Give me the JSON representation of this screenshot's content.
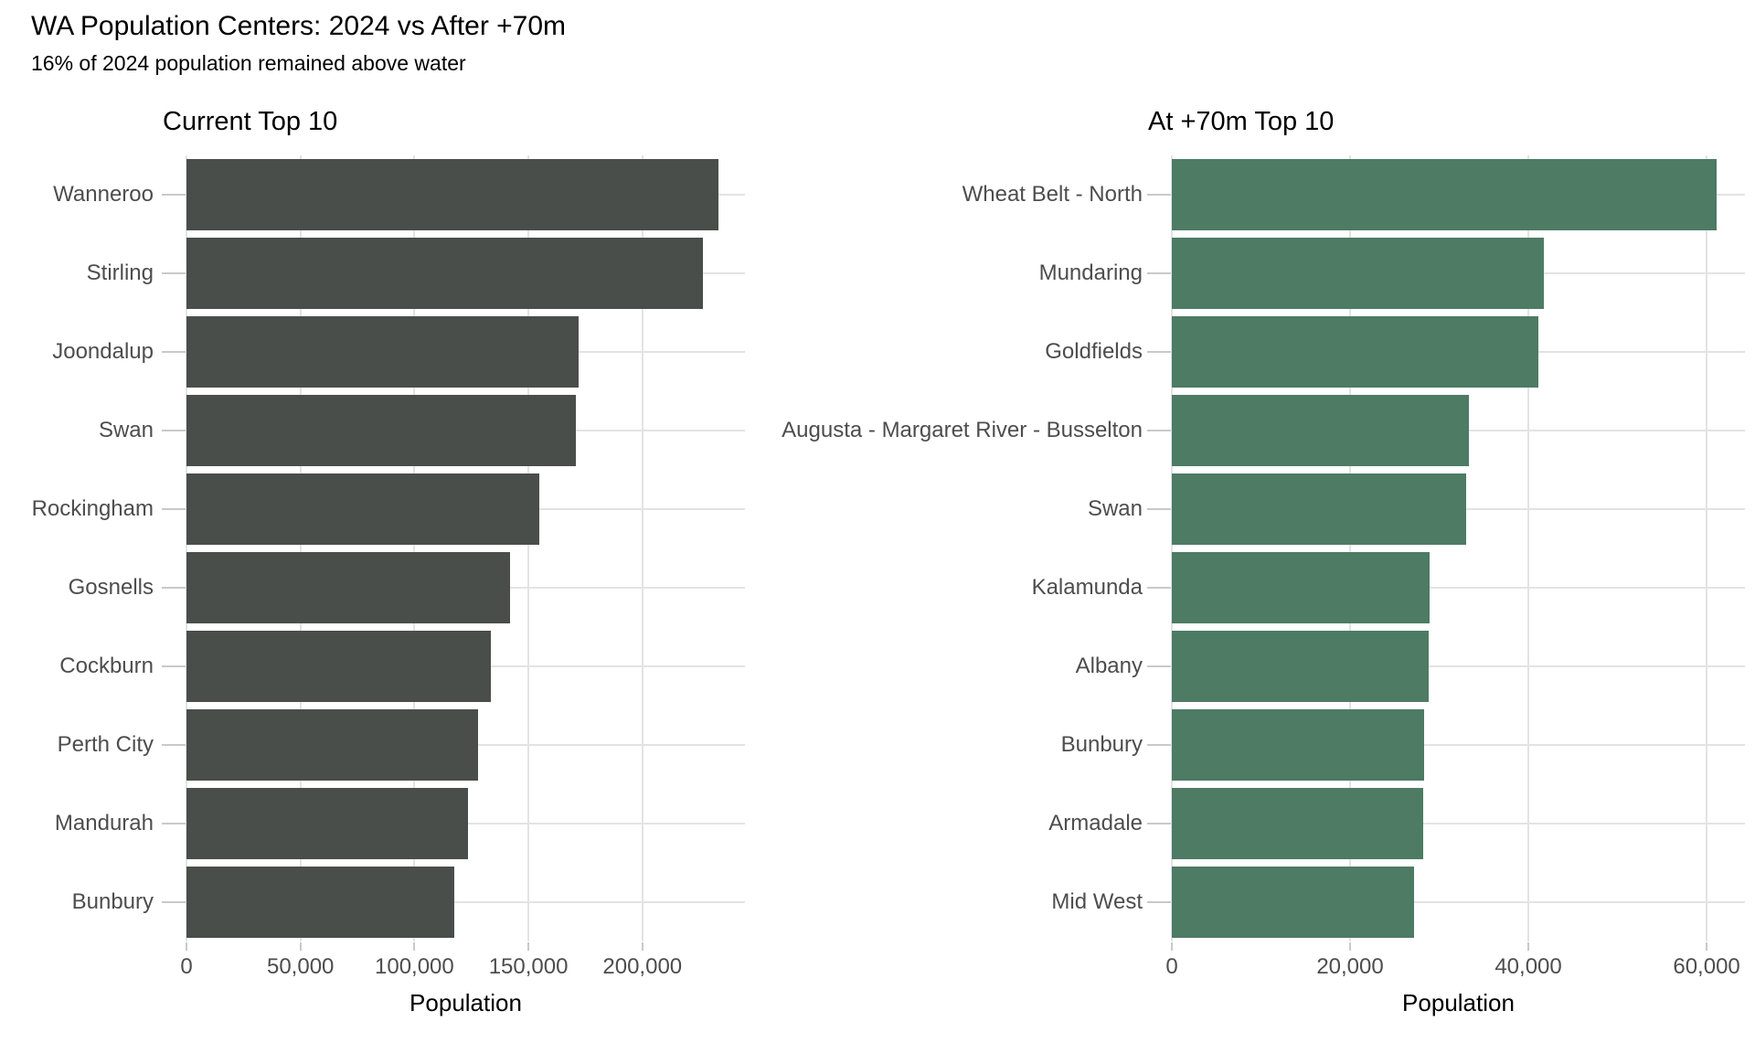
{
  "page": {
    "title": "WA Population Centers: 2024 vs After +70m",
    "subtitle": "16% of 2024 population remained above water"
  },
  "colors": {
    "left_bar": "#494e4b",
    "right_bar": "#4d7b64",
    "gridline": "#e3e3e3",
    "tick_mark": "#c9c9c9",
    "axis_text": "#4d4d4d",
    "title_text": "#000000",
    "background": "#ffffff"
  },
  "chart_data": [
    {
      "type": "bar",
      "orientation": "horizontal",
      "title": "Current Top 10",
      "xlabel": "Population",
      "categories": [
        "Wanneroo",
        "Stirling",
        "Joondalup",
        "Swan",
        "Rockingham",
        "Gosnells",
        "Cockburn",
        "Perth City",
        "Mandurah",
        "Bunbury"
      ],
      "values": [
        233300,
        226600,
        172100,
        170900,
        154800,
        141900,
        133700,
        127900,
        123700,
        117400
      ],
      "xticks": [
        0,
        50000,
        100000,
        150000,
        200000
      ],
      "xlim": [
        0,
        245000
      ],
      "grid": true,
      "legend": false,
      "bar_color": "#494e4b"
    },
    {
      "type": "bar",
      "orientation": "horizontal",
      "title": "At +70m Top 10",
      "xlabel": "Population",
      "categories": [
        "Wheat Belt - North",
        "Mundaring",
        "Goldfields",
        "Augusta - Margaret River - Busselton",
        "Swan",
        "Kalamunda",
        "Albany",
        "Bunbury",
        "Armadale",
        "Mid West"
      ],
      "values": [
        61100,
        41700,
        41100,
        33300,
        33000,
        28900,
        28800,
        28300,
        28200,
        27200
      ],
      "xticks": [
        0,
        20000,
        40000,
        60000
      ],
      "xlim": [
        0,
        64300
      ],
      "grid": true,
      "legend": false,
      "bar_color": "#4d7b64"
    }
  ]
}
